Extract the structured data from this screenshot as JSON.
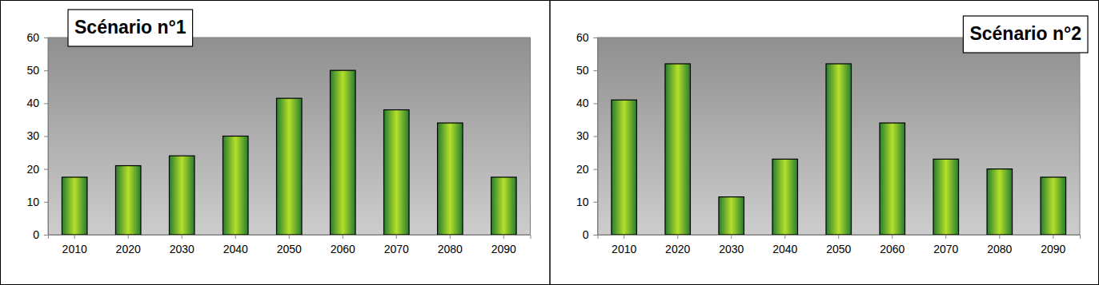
{
  "chart_data": [
    {
      "type": "bar",
      "title": "Scénario n°1",
      "categories": [
        "2010",
        "2020",
        "2030",
        "2040",
        "2050",
        "2060",
        "2070",
        "2080",
        "2090"
      ],
      "values": [
        17.5,
        21,
        24,
        30,
        41.5,
        50,
        38,
        34,
        17.5
      ],
      "color": "#2f9a3c",
      "ylim": [
        0,
        60
      ],
      "yticks": [
        0,
        10,
        20,
        30,
        40,
        50,
        60
      ],
      "grid": false
    },
    {
      "type": "bar",
      "title": "Scénario n°2",
      "categories": [
        "2010",
        "2020",
        "2030",
        "2040",
        "2050",
        "2060",
        "2070",
        "2080",
        "2090"
      ],
      "values": [
        41,
        52,
        11.5,
        23,
        52,
        34,
        23,
        20,
        17.5
      ],
      "color": "#2f9a3c",
      "ylim": [
        0,
        60
      ],
      "yticks": [
        0,
        10,
        20,
        30,
        40,
        50,
        60
      ],
      "grid": false
    }
  ]
}
